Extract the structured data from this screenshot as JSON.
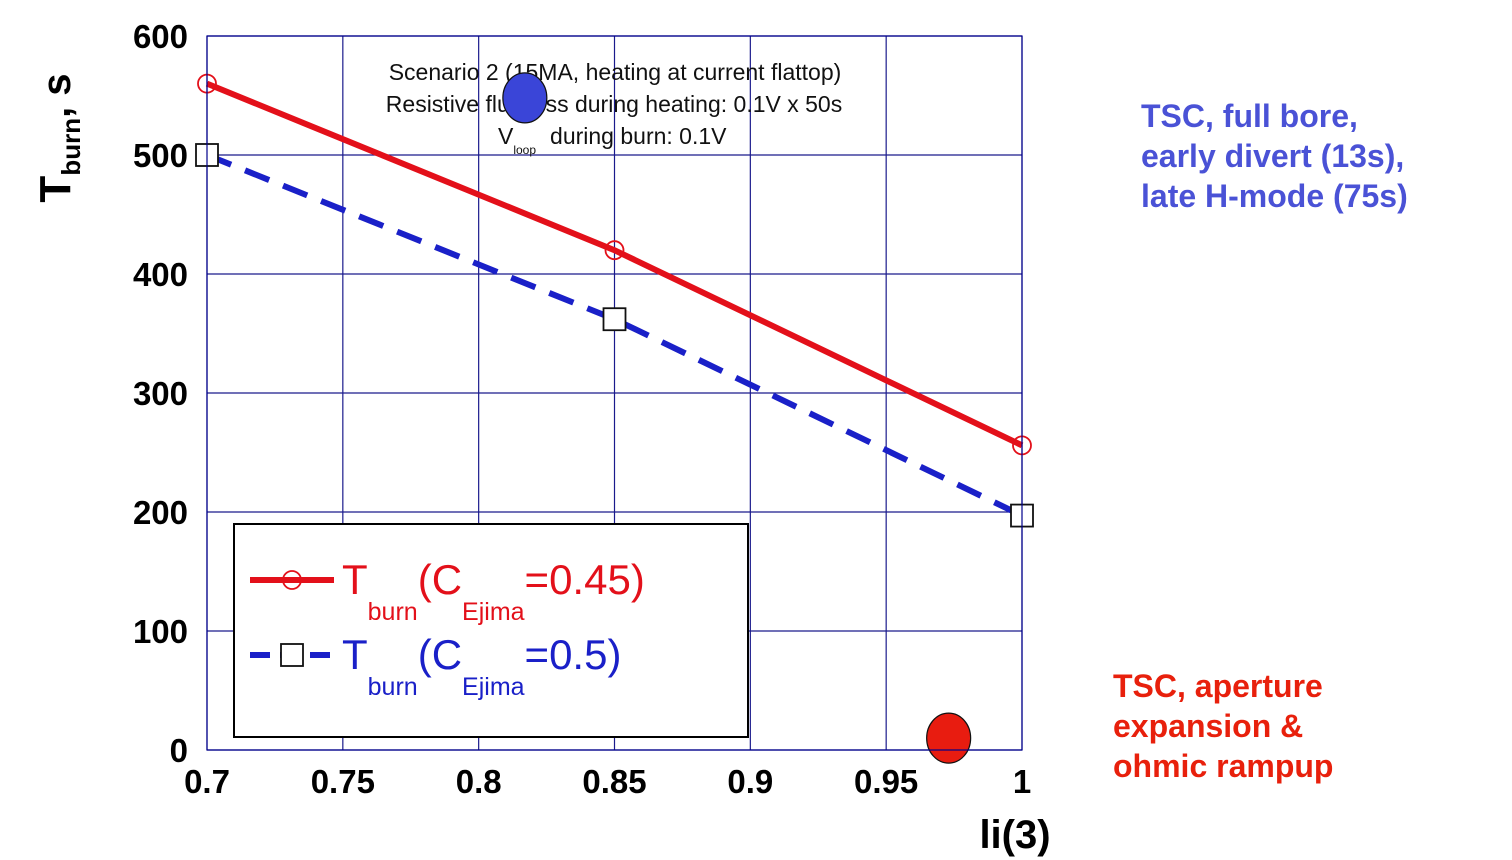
{
  "chart_data": {
    "type": "line",
    "x": [
      0.7,
      0.85,
      1.0
    ],
    "series": [
      {
        "name": "T_burn(C_Ejima=0.45)",
        "values": [
          560,
          420,
          256
        ],
        "color": "#e3101a",
        "dash": "solid",
        "marker": "circle"
      },
      {
        "name": "T_burn(C_Ejima=0.5)",
        "values": [
          500,
          362,
          197
        ],
        "color": "#1a20c8",
        "dash": "dashed",
        "marker": "square"
      }
    ],
    "xlim": [
      0.7,
      1.0
    ],
    "ylim": [
      0,
      600
    ],
    "xticks": [
      "0.7",
      "0.75",
      "0.8",
      "0.85",
      "0.9",
      "0.95",
      "1"
    ],
    "yticks": [
      "0",
      "100",
      "200",
      "300",
      "400",
      "500",
      "600"
    ],
    "xlabel": "li(3)",
    "ylabel": {
      "main": "T",
      "sub": "burn",
      "suffix": ", s"
    },
    "grid": true,
    "legend_position": "bottom-left",
    "annotation": {
      "line1": "Scenario 2 (15MA, heating at current flattop)",
      "line2": "Resistive flux loss during heating: 0.1V x 50s",
      "line3_prefix": "V",
      "line3_sub": "loop",
      "line3_suffix": "during burn: 0.1V"
    },
    "legend": [
      {
        "main": "T",
        "sub": "burn",
        "open": "(C",
        "sub2": "Ejima",
        "value": "=0.45)",
        "color": "#e3101a"
      },
      {
        "main": "T",
        "sub": "burn",
        "open": "(C",
        "sub2": "Ejima",
        "value": "=0.5)",
        "color": "#1a20c8"
      }
    ],
    "markers_overlay": [
      {
        "label": "blue-dot",
        "x": 0.817,
        "y": 548,
        "color": "#3a45d8"
      },
      {
        "label": "red-dot",
        "x": 0.973,
        "y": 10,
        "color": "#e81c10"
      }
    ]
  },
  "side_notes": {
    "top": {
      "text": "TSC, full bore,\nearly divert (13s),\nlate H-mode (75s)",
      "color": "#4a52d6"
    },
    "bottom": {
      "text": "TSC, aperture\nexpansion &\nohmic rampup",
      "color": "#e8200c"
    }
  }
}
